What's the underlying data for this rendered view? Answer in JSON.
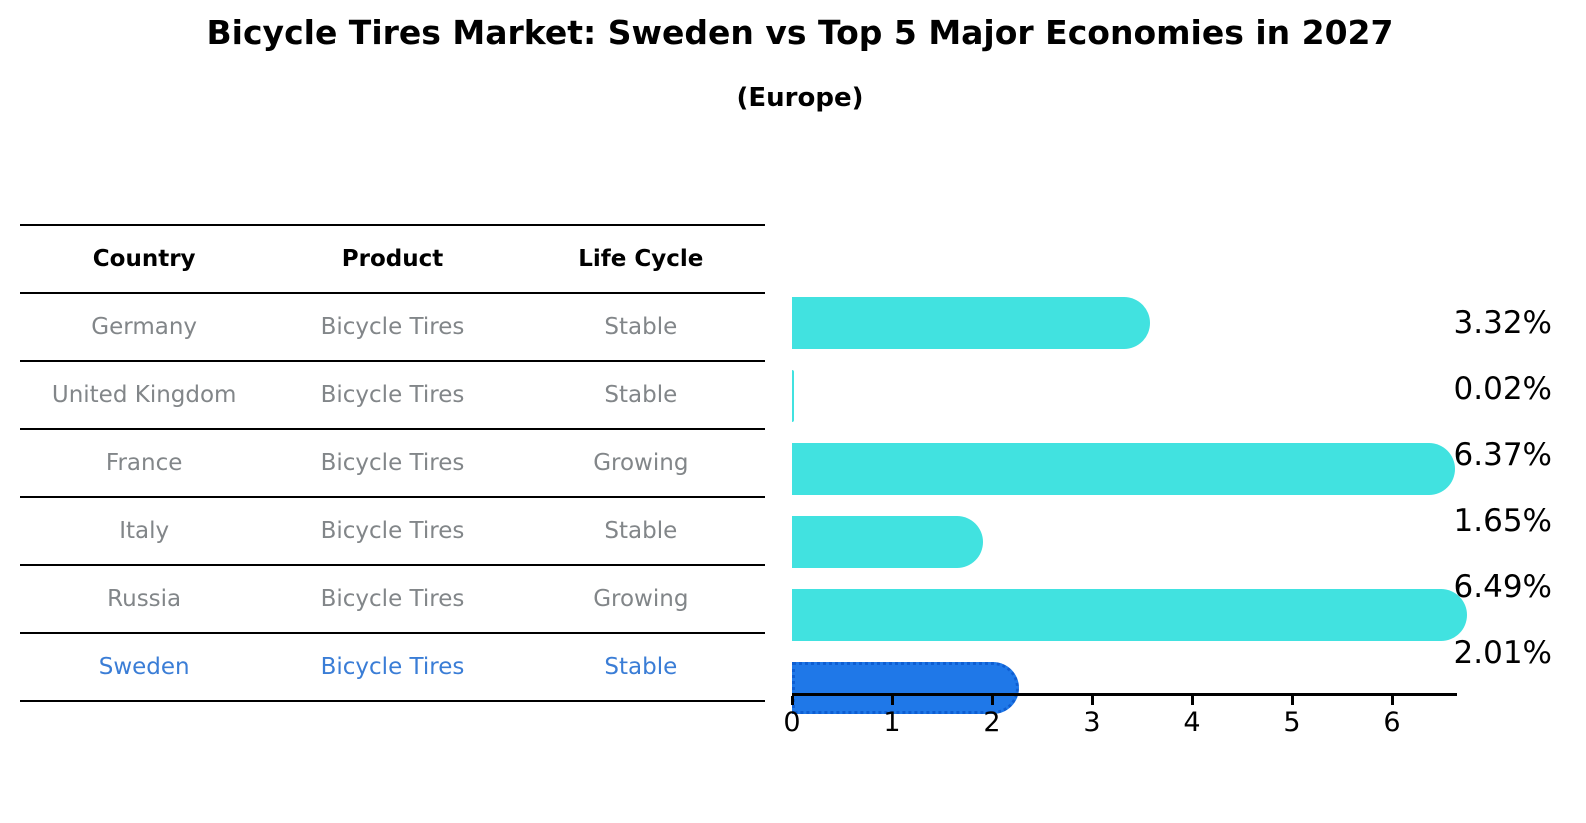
{
  "title": "Bicycle Tires Market: Sweden vs Top 5 Major Economies in 2027",
  "subtitle": "(Europe)",
  "table": {
    "headers": {
      "country": "Country",
      "product": "Product",
      "life_cycle": "Life Cycle"
    },
    "rows": [
      {
        "country": "Germany",
        "product": "Bicycle Tires",
        "life_cycle": "Stable",
        "highlighted": false
      },
      {
        "country": "United Kingdom",
        "product": "Bicycle Tires",
        "life_cycle": "Stable",
        "highlighted": false
      },
      {
        "country": "France",
        "product": "Bicycle Tires",
        "life_cycle": "Growing",
        "highlighted": false
      },
      {
        "country": "Italy",
        "product": "Bicycle Tires",
        "life_cycle": "Stable",
        "highlighted": false
      },
      {
        "country": "Russia",
        "product": "Bicycle Tires",
        "life_cycle": "Growing",
        "highlighted": false
      },
      {
        "country": "Sweden",
        "product": "Bicycle Tires",
        "life_cycle": "Stable",
        "highlighted": true
      }
    ]
  },
  "chart_data": {
    "type": "bar",
    "orientation": "horizontal",
    "title": "Bicycle Tires Market: Sweden vs Top 5 Major Economies in 2027",
    "subtitle": "(Europe)",
    "categories": [
      "Germany",
      "United Kingdom",
      "France",
      "Italy",
      "Russia",
      "Sweden"
    ],
    "values": [
      3.32,
      0.02,
      6.37,
      1.65,
      6.49,
      2.01
    ],
    "value_labels": [
      "3.32%",
      "0.02%",
      "6.37%",
      "1.65%",
      "6.49%",
      "2.01%"
    ],
    "unit": "%",
    "highlight_index": 5,
    "xlim": [
      0,
      6.63
    ],
    "x_ticks": [
      "0",
      "1",
      "2",
      "3",
      "4",
      "5",
      "6"
    ],
    "grid": false,
    "legend": false,
    "bar_color": "#41e2e0",
    "highlight_bar_color": "#1f78e8",
    "highlight_border_color": "#0e5ed2",
    "highlight_text_color": "#3a7dd6",
    "table_text_color": "#828689",
    "axis_color": "#000000"
  }
}
